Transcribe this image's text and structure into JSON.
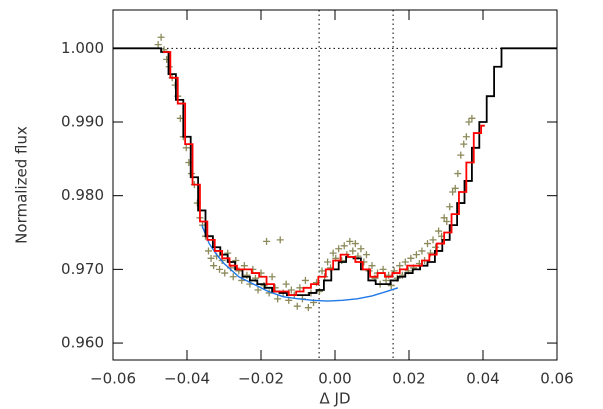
{
  "chart_data": {
    "type": "line",
    "xlabel": "Δ JD",
    "ylabel": "Normalized flux",
    "xlim": [
      -0.06,
      0.06
    ],
    "xticks": [
      {
        "value": -0.06,
        "label": "−0.06"
      },
      {
        "value": -0.04,
        "label": "−0.04"
      },
      {
        "value": -0.02,
        "label": "−0.02"
      },
      {
        "value": 0,
        "label": "0.00"
      },
      {
        "value": 0.02,
        "label": "0.02"
      },
      {
        "value": 0.04,
        "label": "0.04"
      },
      {
        "value": 0.06,
        "label": "0.06"
      }
    ],
    "ylim": [
      0.9577,
      1.0052
    ],
    "yticks": [
      {
        "value": 0.96,
        "label": "0.960"
      },
      {
        "value": 0.97,
        "label": "0.970"
      },
      {
        "value": 0.98,
        "label": "0.980"
      },
      {
        "value": 0.99,
        "label": "0.990"
      },
      {
        "value": 1,
        "label": "1.000"
      }
    ],
    "hline": 1.0,
    "vlines": [
      -0.0043,
      0.0157
    ],
    "series": [
      {
        "style": "scatter",
        "color": "#8c8a5a",
        "x": [
          -0.0478,
          -0.047,
          -0.0462,
          -0.0455,
          -0.0448,
          -0.044,
          -0.0432,
          -0.0425,
          -0.0418,
          -0.041,
          -0.0402,
          -0.0395,
          -0.0388,
          -0.038,
          -0.0372,
          -0.0365,
          -0.0358,
          -0.035,
          -0.0342,
          -0.0335,
          -0.0328,
          -0.032,
          -0.0312,
          -0.0305,
          -0.0298,
          -0.029,
          -0.0282,
          -0.0275,
          -0.0268,
          -0.026,
          -0.0252,
          -0.0245,
          -0.0238,
          -0.023,
          -0.0222,
          -0.0215,
          -0.0208,
          -0.02,
          -0.0192,
          -0.0185,
          -0.0178,
          -0.017,
          -0.0162,
          -0.0155,
          -0.0148,
          -0.014,
          -0.0132,
          -0.0125,
          -0.0118,
          -0.011,
          -0.0102,
          -0.0095,
          -0.0088,
          -0.008,
          -0.0072,
          -0.0065,
          -0.0058,
          -0.005,
          -0.0042,
          -0.0035,
          -0.0028,
          -0.002,
          -0.0012,
          -0.0005,
          0.0002,
          0.001,
          0.0018,
          0.0025,
          0.0032,
          0.004,
          0.0048,
          0.0055,
          0.0062,
          0.007,
          0.0078,
          0.0085,
          0.0092,
          0.01,
          0.0108,
          0.0115,
          0.0122,
          0.013,
          0.0138,
          0.0145,
          0.0152,
          0.016,
          0.0168,
          0.0175,
          0.0182,
          0.019,
          0.0198,
          0.0205,
          0.0212,
          0.022,
          0.0228,
          0.0235,
          0.0242,
          0.025,
          0.0258,
          0.0265,
          0.0272,
          0.028,
          0.0288,
          0.0295,
          0.0302,
          0.031,
          0.0318,
          0.0325,
          0.0332,
          0.034,
          0.0348,
          0.0355,
          0.0362,
          0.037
        ],
        "values": [
          1.0005,
          1.0015,
          0.9998,
          0.9985,
          0.9975,
          0.996,
          0.995,
          0.9935,
          0.9905,
          0.988,
          0.9865,
          0.9845,
          0.983,
          0.9815,
          0.979,
          0.977,
          0.976,
          0.9745,
          0.9725,
          0.9715,
          0.9705,
          0.9718,
          0.97,
          0.9712,
          0.9695,
          0.9722,
          0.9702,
          0.969,
          0.9712,
          0.9698,
          0.9685,
          0.9705,
          0.9692,
          0.968,
          0.97,
          0.9688,
          0.9672,
          0.9695,
          0.9678,
          0.9738,
          0.9668,
          0.969,
          0.9675,
          0.966,
          0.974,
          0.9668,
          0.968,
          0.9658,
          0.9672,
          0.9665,
          0.965,
          0.9675,
          0.966,
          0.9685,
          0.9648,
          0.9668,
          0.9655,
          0.9682,
          0.967,
          0.9698,
          0.969,
          0.971,
          0.9702,
          0.9722,
          0.9715,
          0.9728,
          0.9712,
          0.9732,
          0.972,
          0.9738,
          0.9725,
          0.9735,
          0.9718,
          0.9728,
          0.971,
          0.972,
          0.9698,
          0.9705,
          0.9688,
          0.9695,
          0.968,
          0.97,
          0.9685,
          0.9692,
          0.9678,
          0.9698,
          0.9688,
          0.9705,
          0.9692,
          0.971,
          0.9698,
          0.9715,
          0.9702,
          0.972,
          0.9708,
          0.9725,
          0.9712,
          0.9735,
          0.9722,
          0.974,
          0.973,
          0.9752,
          0.9745,
          0.977,
          0.9765,
          0.9785,
          0.9805,
          0.981,
          0.983,
          0.9855,
          0.987,
          0.988,
          0.99,
          0.9905
        ]
      },
      {
        "style": "line",
        "color": "#1f78e6",
        "x": [
          -0.036,
          -0.034,
          -0.032,
          -0.03,
          -0.026,
          -0.022,
          -0.018,
          -0.014,
          -0.01,
          -0.006,
          -0.002,
          0.002,
          0.006,
          0.01,
          0.014,
          0.017
        ],
        "values": [
          0.976,
          0.9735,
          0.972,
          0.9708,
          0.969,
          0.968,
          0.967,
          0.9663,
          0.966,
          0.9658,
          0.9657,
          0.9658,
          0.966,
          0.9664,
          0.967,
          0.9675
        ]
      },
      {
        "style": "step",
        "color": "#000000",
        "x": [
          -0.06,
          -0.047,
          -0.045,
          -0.043,
          -0.041,
          -0.039,
          -0.037,
          -0.035,
          -0.033,
          -0.031,
          -0.029,
          -0.027,
          -0.025,
          -0.023,
          -0.021,
          -0.019,
          -0.017,
          -0.015,
          -0.013,
          -0.011,
          -0.009,
          -0.007,
          -0.005,
          -0.003,
          -0.001,
          0.001,
          0.003,
          0.005,
          0.007,
          0.009,
          0.011,
          0.013,
          0.015,
          0.017,
          0.019,
          0.021,
          0.023,
          0.025,
          0.027,
          0.029,
          0.031,
          0.033,
          0.035,
          0.037,
          0.039,
          0.041,
          0.043,
          0.045,
          0.06
        ],
        "values": [
          1.0,
          0.9995,
          0.9965,
          0.993,
          0.988,
          0.9825,
          0.978,
          0.9745,
          0.973,
          0.972,
          0.971,
          0.97,
          0.969,
          0.9685,
          0.968,
          0.9675,
          0.967,
          0.9668,
          0.9665,
          0.9665,
          0.9665,
          0.9668,
          0.9672,
          0.9685,
          0.97,
          0.971,
          0.9717,
          0.9715,
          0.97,
          0.9685,
          0.968,
          0.968,
          0.9685,
          0.969,
          0.9695,
          0.97,
          0.9705,
          0.971,
          0.9725,
          0.974,
          0.976,
          0.979,
          0.982,
          0.9865,
          0.99,
          0.9935,
          0.9975,
          1.0,
          1.0
        ]
      },
      {
        "style": "step",
        "color": "#ff0000",
        "x": [
          -0.0465,
          -0.0445,
          -0.0425,
          -0.0405,
          -0.0385,
          -0.0365,
          -0.0345,
          -0.0325,
          -0.0305,
          -0.0285,
          -0.0265,
          -0.0245,
          -0.0225,
          -0.0205,
          -0.0185,
          -0.0165,
          -0.0145,
          -0.0125,
          -0.0105,
          -0.0085,
          -0.0065,
          -0.0045,
          -0.0025,
          -0.0005,
          0.0015,
          0.0035,
          0.0055,
          0.0075,
          0.0095,
          0.0115,
          0.0135,
          0.0155,
          0.0175,
          0.0195,
          0.0215,
          0.0235,
          0.0255,
          0.0275,
          0.0295,
          0.0315,
          0.0335,
          0.0355,
          0.0375,
          0.0395,
          0.0405
        ],
        "values": [
          0.9995,
          0.996,
          0.9925,
          0.987,
          0.9815,
          0.9765,
          0.974,
          0.9725,
          0.9715,
          0.9705,
          0.97,
          0.97,
          0.9695,
          0.969,
          0.968,
          0.967,
          0.967,
          0.9665,
          0.967,
          0.9675,
          0.968,
          0.969,
          0.97,
          0.9712,
          0.972,
          0.9717,
          0.971,
          0.97,
          0.969,
          0.9695,
          0.969,
          0.9695,
          0.97,
          0.9705,
          0.9705,
          0.9712,
          0.972,
          0.9735,
          0.975,
          0.9775,
          0.9805,
          0.9845,
          0.9885,
          0.9895,
          0.9895
        ]
      }
    ]
  }
}
